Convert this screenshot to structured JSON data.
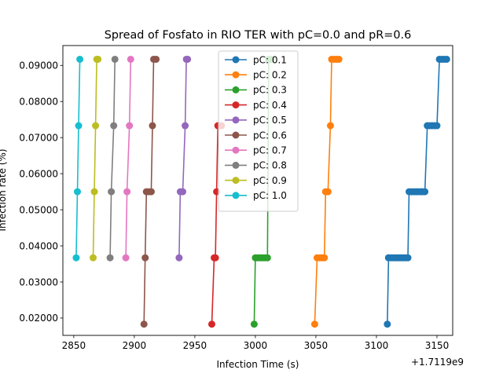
{
  "chart_data": {
    "type": "line",
    "title": "Spread of Fosfato in RIO TER with pC=0.0 and pR=0.6",
    "xlabel": "Infection Time (s)",
    "ylabel": "Infection rate (%)",
    "x_offset_label": "+1.7119e9",
    "xlim": [
      2841,
      3163
    ],
    "ylim": [
      0.0152,
      0.0955
    ],
    "x_ticks": [
      2850,
      2900,
      2950,
      3000,
      3050,
      3100,
      3150
    ],
    "x_tick_labels": [
      "2850",
      "2900",
      "2950",
      "3000",
      "3050",
      "3100",
      "3150"
    ],
    "y_ticks": [
      0.02,
      0.03,
      0.04,
      0.05,
      0.06,
      0.07,
      0.08,
      0.09
    ],
    "y_tick_labels": [
      "0.02000",
      "0.03000",
      "0.04000",
      "0.05000",
      "0.06000",
      "0.07000",
      "0.08000",
      "0.09000"
    ],
    "legend_position": "upper center",
    "grid": false,
    "series": [
      {
        "name": "pC: 0.1",
        "color": "#1f77b4",
        "x": [
          3109,
          3110,
          3110,
          3112,
          3114,
          3116,
          3118,
          3120,
          3122,
          3124,
          3126,
          3127,
          3129,
          3131,
          3133,
          3135,
          3137,
          3138,
          3140,
          3142,
          3144,
          3146,
          3148,
          3150,
          3152,
          3154,
          3156,
          3158
        ],
        "y": [
          0.0183,
          0.0367,
          0.0367,
          0.0367,
          0.0367,
          0.0367,
          0.0367,
          0.0367,
          0.0367,
          0.0367,
          0.0367,
          0.055,
          0.055,
          0.055,
          0.055,
          0.055,
          0.055,
          0.055,
          0.055,
          0.0733,
          0.0733,
          0.0733,
          0.0733,
          0.0733,
          0.0917,
          0.0917,
          0.0917,
          0.0917
        ]
      },
      {
        "name": "pC: 0.2",
        "color": "#ff7f0e",
        "x": [
          3049,
          3051,
          3053,
          3055,
          3057,
          3058,
          3060,
          3062,
          3063,
          3065,
          3067,
          3069
        ],
        "y": [
          0.0183,
          0.0367,
          0.0367,
          0.0367,
          0.0367,
          0.055,
          0.055,
          0.0733,
          0.0917,
          0.0917,
          0.0917,
          0.0917
        ]
      },
      {
        "name": "pC: 0.3",
        "color": "#2ca02c",
        "x": [
          2999,
          3000,
          3002,
          3004,
          3006,
          3008,
          3010,
          3011,
          3013
        ],
        "y": [
          0.0183,
          0.0367,
          0.0367,
          0.0367,
          0.0367,
          0.0367,
          0.0367,
          0.0917,
          0.0917
        ]
      },
      {
        "name": "pC: 0.4",
        "color": "#d62728",
        "x": [
          2964,
          2966,
          2967,
          2968,
          2969,
          2970,
          2972
        ],
        "y": [
          0.0183,
          0.0367,
          0.0367,
          0.055,
          0.0733,
          0.0733,
          0.0733
        ]
      },
      {
        "name": "pC: 0.5",
        "color": "#9467bd",
        "x": [
          2937,
          2938,
          2940,
          2942,
          2943,
          2944
        ],
        "y": [
          0.0367,
          0.055,
          0.055,
          0.0733,
          0.0917,
          0.0917
        ]
      },
      {
        "name": "pC: 0.6",
        "color": "#8c564b",
        "x": [
          2908,
          2909,
          2910,
          2912,
          2914,
          2915,
          2916,
          2918
        ],
        "y": [
          0.0183,
          0.0367,
          0.055,
          0.055,
          0.055,
          0.0733,
          0.0917,
          0.0917
        ]
      },
      {
        "name": "pC: 0.7",
        "color": "#e377c2",
        "x": [
          2893,
          2894,
          2896,
          2897
        ],
        "y": [
          0.0367,
          0.055,
          0.0733,
          0.0917
        ]
      },
      {
        "name": "pC: 0.8",
        "color": "#7f7f7f",
        "x": [
          2880,
          2881,
          2883,
          2884
        ],
        "y": [
          0.0367,
          0.055,
          0.0733,
          0.0917
        ]
      },
      {
        "name": "pC: 0.9",
        "color": "#bcbd22",
        "x": [
          2866,
          2867,
          2868,
          2869,
          2870
        ],
        "y": [
          0.0367,
          0.055,
          0.0733,
          0.0917,
          0.0917
        ]
      },
      {
        "name": "pC: 1.0",
        "color": "#17becf",
        "x": [
          2852,
          2853,
          2854,
          2855
        ],
        "y": [
          0.0367,
          0.055,
          0.0733,
          0.0917
        ]
      }
    ]
  }
}
